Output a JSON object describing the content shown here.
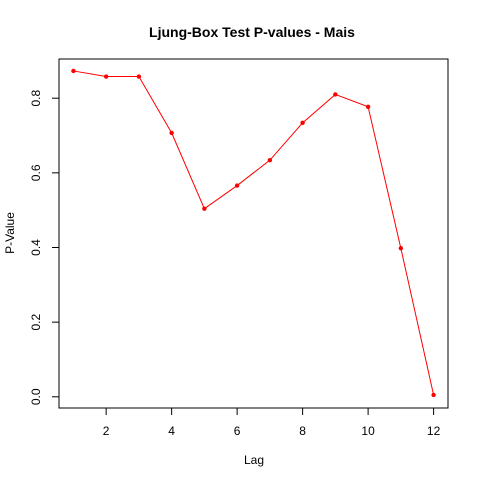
{
  "chart_data": {
    "type": "line",
    "title": "Ljung-Box Test P-values - Mais",
    "xlabel": "Lag",
    "ylabel": "P-Value",
    "x": [
      1,
      2,
      3,
      4,
      5,
      6,
      7,
      8,
      9,
      10,
      11,
      12
    ],
    "series": [
      {
        "values": [
          0.873,
          0.858,
          0.858,
          0.707,
          0.504,
          0.566,
          0.634,
          0.734,
          0.81,
          0.777,
          0.398,
          0.005
        ],
        "color": "#ff0000"
      }
    ],
    "xlim": [
      0.56,
      12.44
    ],
    "ylim": [
      -0.03,
      0.905
    ],
    "xticks": [
      2,
      4,
      6,
      8,
      10,
      12
    ],
    "xtick_labels": [
      "2",
      "4",
      "6",
      "8",
      "10",
      "12"
    ],
    "yticks": [
      0.0,
      0.2,
      0.4,
      0.6,
      0.8
    ],
    "ytick_labels": [
      "0.0",
      "0.2",
      "0.4",
      "0.6",
      "0.8"
    ],
    "grid": false,
    "legend": "none"
  }
}
